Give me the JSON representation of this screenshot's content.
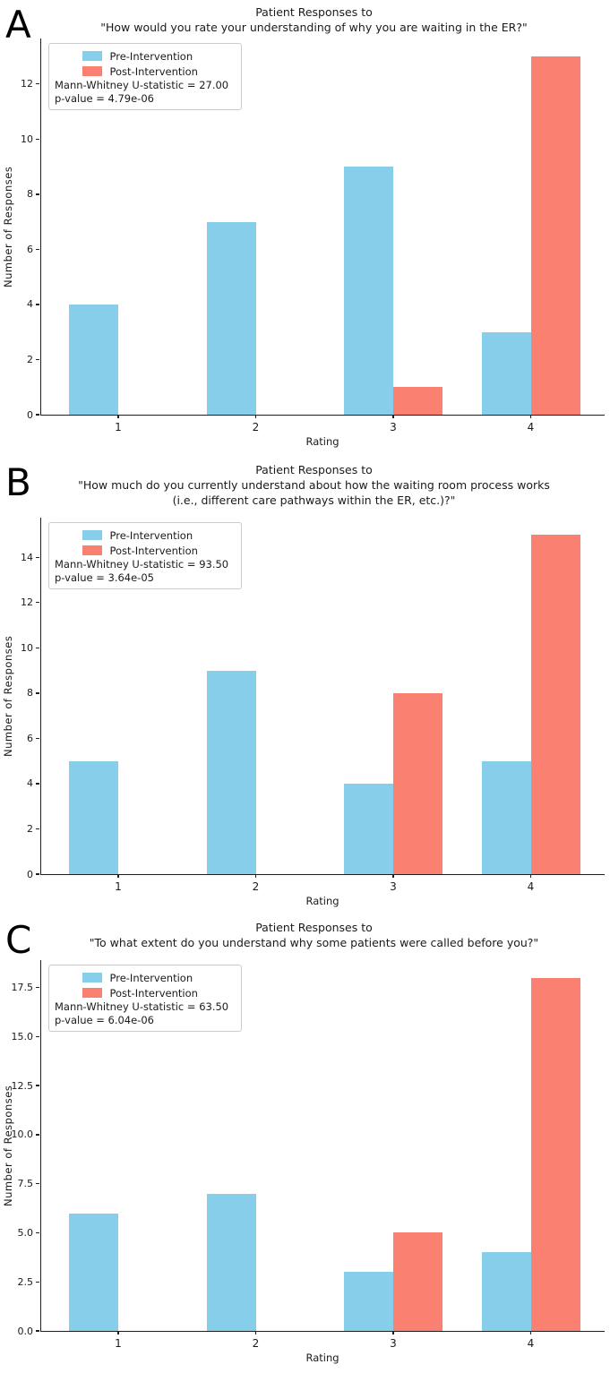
{
  "figure": {
    "pre_color": "#87CEEB",
    "post_color": "#FA8072",
    "panels": [
      {
        "letter": "A",
        "title_line1": "Patient Responses to",
        "title_line2": "\"How would you rate your understanding of why you are waiting in the ER?\"",
        "title_line3": "",
        "legend": {
          "pre_label": "Pre-Intervention",
          "post_label": "Post-Intervention"
        },
        "stats_line1": "Mann-Whitney U-statistic = 27.00",
        "stats_line2": "p-value = 4.79e-06",
        "ylabel": "Number of Responses",
        "xlabel": "Rating"
      },
      {
        "letter": "B",
        "title_line1": "Patient Responses to",
        "title_line2": "\"How much do you currently understand about how the waiting room process works",
        "title_line3": "(i.e., different care pathways within the ER, etc.)?\"",
        "legend": {
          "pre_label": "Pre-Intervention",
          "post_label": "Post-Intervention"
        },
        "stats_line1": "Mann-Whitney U-statistic = 93.50",
        "stats_line2": "p-value = 3.64e-05",
        "ylabel": "Number of Responses",
        "xlabel": "Rating"
      },
      {
        "letter": "C",
        "title_line1": "Patient Responses to",
        "title_line2": "\"To what extent do you understand why some patients were called before you?\"",
        "title_line3": "",
        "legend": {
          "pre_label": "Pre-Intervention",
          "post_label": "Post-Intervention"
        },
        "stats_line1": "Mann-Whitney U-statistic = 63.50",
        "stats_line2": "p-value = 6.04e-06",
        "ylabel": "Number of Responses",
        "xlabel": "Rating"
      }
    ]
  },
  "chart_data": [
    {
      "type": "bar",
      "title": "Patient Responses to \"How would you rate your understanding of why you are waiting in the ER?\"",
      "categories": [
        "1",
        "2",
        "3",
        "4"
      ],
      "series": [
        {
          "name": "Pre-Intervention",
          "color": "#87CEEB",
          "values": [
            4,
            7,
            9,
            3
          ]
        },
        {
          "name": "Post-Intervention",
          "color": "#FA8072",
          "values": [
            0,
            0,
            1,
            13
          ]
        }
      ],
      "xlabel": "Rating",
      "ylabel": "Number of Responses",
      "ylim": [
        0,
        13.65
      ],
      "ytick_values": [
        0,
        2,
        4,
        6,
        8,
        10,
        12
      ],
      "ytick_labels": [
        "0",
        "2",
        "4",
        "6",
        "8",
        "10",
        "12"
      ],
      "legend_position": "upper left",
      "grid": false,
      "annotations": [
        "Mann-Whitney U-statistic = 27.00",
        "p-value = 4.79e-06"
      ]
    },
    {
      "type": "bar",
      "title": "Patient Responses to \"How much do you currently understand about how the waiting room process works (i.e., different care pathways within the ER, etc.)?\"",
      "categories": [
        "1",
        "2",
        "3",
        "4"
      ],
      "series": [
        {
          "name": "Pre-Intervention",
          "color": "#87CEEB",
          "values": [
            5,
            9,
            4,
            5
          ]
        },
        {
          "name": "Post-Intervention",
          "color": "#FA8072",
          "values": [
            0,
            0,
            8,
            15
          ]
        }
      ],
      "xlabel": "Rating",
      "ylabel": "Number of Responses",
      "ylim": [
        0,
        15.75
      ],
      "ytick_values": [
        0,
        2,
        4,
        6,
        8,
        10,
        12,
        14
      ],
      "ytick_labels": [
        "0",
        "2",
        "4",
        "6",
        "8",
        "10",
        "12",
        "14"
      ],
      "legend_position": "upper left",
      "grid": false,
      "annotations": [
        "Mann-Whitney U-statistic = 93.50",
        "p-value = 3.64e-05"
      ]
    },
    {
      "type": "bar",
      "title": "Patient Responses to \"To what extent do you understand why some patients were called before you?\"",
      "categories": [
        "1",
        "2",
        "3",
        "4"
      ],
      "series": [
        {
          "name": "Pre-Intervention",
          "color": "#87CEEB",
          "values": [
            6,
            7,
            3,
            4
          ]
        },
        {
          "name": "Post-Intervention",
          "color": "#FA8072",
          "values": [
            0,
            0,
            5,
            18
          ]
        }
      ],
      "xlabel": "Rating",
      "ylabel": "Number of Responses",
      "ylim": [
        0,
        18.9
      ],
      "ytick_values": [
        0,
        2.5,
        5,
        7.5,
        10,
        12.5,
        15,
        17.5
      ],
      "ytick_labels": [
        "0.0",
        "2.5",
        "5.0",
        "7.5",
        "10.0",
        "12.5",
        "15.0",
        "17.5"
      ],
      "legend_position": "upper left",
      "grid": false,
      "annotations": [
        "Mann-Whitney U-statistic = 63.50",
        "p-value = 6.04e-06"
      ]
    }
  ]
}
